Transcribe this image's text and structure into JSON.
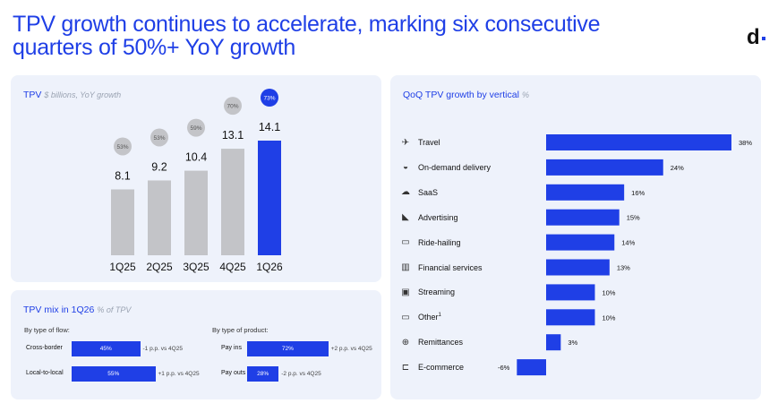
{
  "header": {
    "title_line1": "TPV growth continues to accelerate, marking six consecutive",
    "title_line2": "quarters of 50%+ YoY growth",
    "logo": "d"
  },
  "colors": {
    "accent": "#1f3fe6",
    "grey_bar": "#c3c4c8",
    "grey_badge": "#c3c4c8",
    "panel_bg": "#eef2fb"
  },
  "tpv_panel": {
    "title": "TPV",
    "subtitle": "$ billions, YoY growth"
  },
  "mix_panel": {
    "title": "TPV mix in 1Q26",
    "subtitle": "% of TPV",
    "flow_header": "By type of flow:",
    "product_header": "By type of product:",
    "flow_rows": [
      {
        "label": "Cross-border",
        "value_label": "45%",
        "share": 45,
        "delta": "-1 p.p. vs 4Q25"
      },
      {
        "label": "Local-to-local",
        "value_label": "55%",
        "share": 55,
        "delta": "+1 p.p. vs 4Q25"
      }
    ],
    "product_rows": [
      {
        "label": "Pay ins",
        "value_label": "72%",
        "share": 72,
        "delta": "+2 p.p. vs 4Q25"
      },
      {
        "label": "Pay outs",
        "value_label": "28%",
        "share": 28,
        "delta": "-2 p.p. vs 4Q25"
      }
    ]
  },
  "vertical_panel": {
    "title": "QoQ TPV growth by vertical",
    "subtitle": "%"
  },
  "chart_data": [
    {
      "type": "bar",
      "title": "TPV",
      "subtitle": "$ billions, YoY growth",
      "categories": [
        "1Q25",
        "2Q25",
        "3Q25",
        "4Q25",
        "1Q26"
      ],
      "values": [
        8.1,
        9.2,
        10.4,
        13.1,
        14.1
      ],
      "value_labels": [
        "8.1",
        "9.2",
        "10.4",
        "13.1",
        "14.1"
      ],
      "yoy_growth": [
        "53%",
        "53%",
        "59%",
        "70%",
        "73%"
      ],
      "highlight_index": 4,
      "ylim": [
        0,
        16
      ]
    },
    {
      "type": "bar",
      "orientation": "horizontal",
      "title": "QoQ TPV growth by vertical",
      "categories": [
        "Travel",
        "On-demand delivery",
        "SaaS",
        "Advertising",
        "Ride-hailing",
        "Financial services",
        "Streaming",
        "Other",
        "Remittances",
        "E-commerce"
      ],
      "category_superscripts": [
        "",
        "",
        "",
        "",
        "",
        "",
        "",
        "1",
        "",
        ""
      ],
      "icons": [
        "plane-icon",
        "food-icon",
        "cloud-icon",
        "megaphone-icon",
        "car-icon",
        "bank-icon",
        "tv-icon",
        "laptop-icon",
        "globe-icon",
        "cart-icon"
      ],
      "icon_glyphs": [
        "✈",
        "◒",
        "☁",
        "◣",
        "▭",
        "▥",
        "▣",
        "▭",
        "⊕",
        "⊏"
      ],
      "values": [
        38,
        24,
        16,
        15,
        14,
        13,
        10,
        10,
        3,
        -6
      ],
      "value_labels": [
        "38%",
        "24%",
        "16%",
        "15%",
        "14%",
        "13%",
        "10%",
        "10%",
        "3%",
        "-6%"
      ],
      "xlim": [
        -6,
        38
      ]
    }
  ]
}
